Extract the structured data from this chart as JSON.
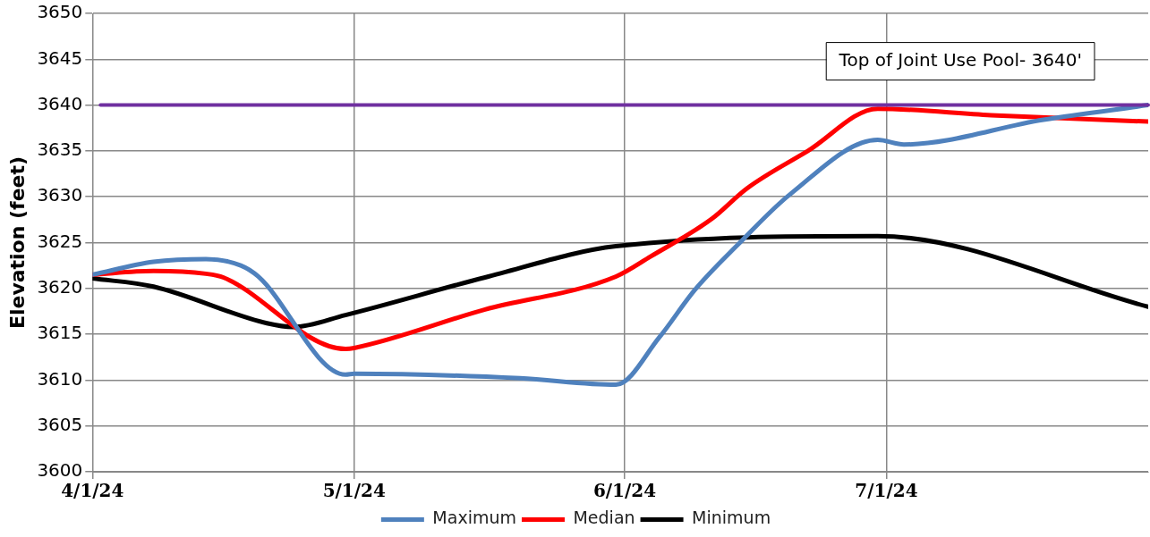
{
  "chart_data": {
    "type": "line",
    "ylabel": "Elevation (feet)",
    "xlim": [
      "2024-04-01",
      "2024-07-31"
    ],
    "xticks": [
      {
        "value": "2024-04-01",
        "label": "4/1/24"
      },
      {
        "value": "2024-05-01",
        "label": "5/1/24"
      },
      {
        "value": "2024-06-01",
        "label": "6/1/24"
      },
      {
        "value": "2024-07-01",
        "label": "7/1/24"
      }
    ],
    "ylim": [
      3600,
      3650
    ],
    "yticks": [
      3600,
      3605,
      3610,
      3615,
      3620,
      3625,
      3630,
      3635,
      3640,
      3645,
      3650
    ],
    "grid": true,
    "legend": "bottom",
    "marker": "none",
    "line_style": "solid",
    "series": [
      {
        "name": "Maximum",
        "color": "#4f81bd",
        "x": [
          "2024-04-01",
          "2024-04-08",
          "2024-04-14",
          "2024-04-18",
          "2024-04-20",
          "2024-04-30",
          "2024-05-01",
          "2024-05-20",
          "2024-05-31",
          "2024-06-05",
          "2024-06-09",
          "2024-06-14",
          "2024-06-20",
          "2024-06-30",
          "2024-07-03",
          "2024-07-19",
          "2024-07-31"
        ],
        "values": [
          3621.5,
          3622.9,
          3623.2,
          3622.5,
          3621.3,
          3610.6,
          3610.7,
          3610.2,
          3609.5,
          3614.7,
          3619.8,
          3624.8,
          3630.3,
          3636.2,
          3635.7,
          3638.4,
          3640.0
        ]
      },
      {
        "name": "Median",
        "color": "#ff0000",
        "x": [
          "2024-04-01",
          "2024-04-08",
          "2024-04-14",
          "2024-04-16",
          "2024-04-30",
          "2024-05-01",
          "2024-05-16",
          "2024-05-31",
          "2024-06-04",
          "2024-06-11",
          "2024-06-15",
          "2024-06-22",
          "2024-06-30",
          "2024-07-13",
          "2024-07-31"
        ],
        "values": [
          3621.5,
          3621.9,
          3621.6,
          3621.2,
          3613.4,
          3613.5,
          3617.7,
          3621.3,
          3623.5,
          3627.6,
          3630.9,
          3635.0,
          3639.6,
          3638.9,
          3638.2
        ]
      },
      {
        "name": "Minimum",
        "color": "#000000",
        "x": [
          "2024-04-01",
          "2024-04-08",
          "2024-04-21",
          "2024-04-24",
          "2024-04-30",
          "2024-05-16",
          "2024-05-31",
          "2024-06-30",
          "2024-07-31"
        ],
        "values": [
          3621.1,
          3620.2,
          3616.2,
          3615.8,
          3617.1,
          3621.2,
          3624.6,
          3625.7,
          3618.0
        ]
      }
    ],
    "ref_lines": [
      {
        "axis": "y",
        "value": 3640,
        "label": "Top of Joint Use Pool- 3640'",
        "color": "#7030a0"
      }
    ]
  }
}
